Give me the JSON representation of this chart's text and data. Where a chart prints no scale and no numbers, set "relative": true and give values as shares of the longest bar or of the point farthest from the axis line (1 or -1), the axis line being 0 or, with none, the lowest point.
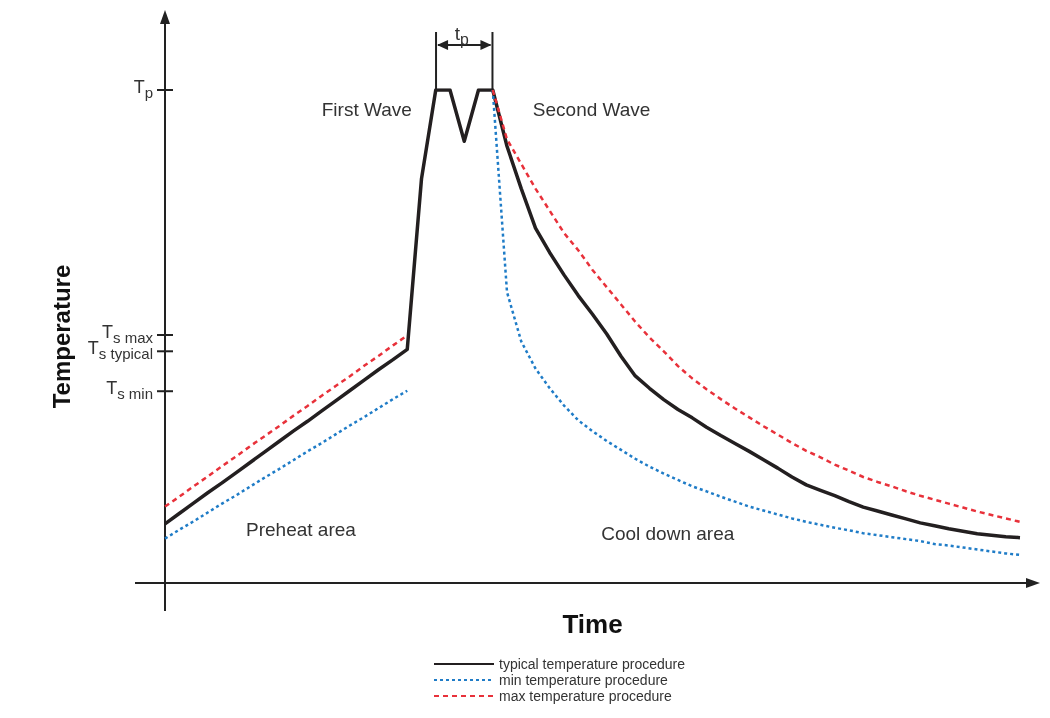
{
  "chart_data": {
    "type": "line",
    "relative": true,
    "xlabel": "Time",
    "ylabel": "Temperature",
    "grid": false,
    "legend": "bottom",
    "marker": "none",
    "categories": [
      null,
      null,
      null,
      null,
      null,
      null,
      null,
      null,
      null,
      null,
      null,
      null,
      null,
      null,
      null,
      null,
      null,
      null,
      null,
      null,
      null,
      null,
      null,
      null,
      null,
      null,
      null,
      null,
      null,
      null,
      null,
      null,
      null,
      null,
      null,
      null,
      null,
      null,
      null,
      null,
      null,
      null,
      null,
      null,
      null,
      null,
      null,
      null,
      null,
      null,
      null,
      null,
      null,
      null,
      null,
      null,
      null,
      null,
      null,
      null,
      null
    ],
    "series": [
      {
        "name": "typical temperature procedure",
        "color": "#231f20",
        "line_style": "solid",
        "values": [
          0.12,
          0.141,
          0.162,
          0.183,
          0.203,
          0.224,
          0.245,
          0.266,
          0.287,
          0.308,
          0.328,
          0.349,
          0.37,
          0.391,
          0.412,
          0.433,
          0.453,
          0.474,
          0.82,
          1,
          1,
          0.896,
          1,
          1,
          0.886,
          0.8,
          0.72,
          0.67,
          0.625,
          0.583,
          0.545,
          0.505,
          0.46,
          0.42,
          0.395,
          0.372,
          0.352,
          0.335,
          0.316,
          0.299,
          0.283,
          0.267,
          0.25,
          0.233,
          0.215,
          0.199,
          0.188,
          0.177,
          0.165,
          0.154,
          0.146,
          0.138,
          0.13,
          0.122,
          0.116,
          0.11,
          0.105,
          0.1,
          0.097,
          0.094,
          0.092
        ]
      },
      {
        "name": "min temperature procedure",
        "color": "#1f7cc7",
        "line_style": "dotted",
        "values": [
          0.09,
          0.108,
          0.125,
          0.143,
          0.161,
          0.178,
          0.196,
          0.214,
          0.231,
          0.249,
          0.267,
          0.284,
          0.302,
          0.32,
          0.337,
          0.355,
          0.373,
          0.39,
          null,
          null,
          null,
          null,
          null,
          1,
          0.59,
          0.49,
          0.435,
          0.395,
          0.36,
          0.33,
          0.308,
          0.288,
          0.27,
          0.252,
          0.236,
          0.222,
          0.209,
          0.196,
          0.186,
          0.175,
          0.165,
          0.155,
          0.147,
          0.139,
          0.131,
          0.124,
          0.118,
          0.112,
          0.107,
          0.101,
          0.097,
          0.093,
          0.089,
          0.085,
          0.079,
          0.076,
          0.072,
          0.068,
          0.064,
          0.06,
          0.057
        ]
      },
      {
        "name": "max temperature procedure",
        "color": "#e8313a",
        "line_style": "dashed",
        "values": [
          0.155,
          0.175,
          0.196,
          0.216,
          0.237,
          0.257,
          0.278,
          0.298,
          0.318,
          0.339,
          0.359,
          0.38,
          0.4,
          0.42,
          0.441,
          0.461,
          0.482,
          0.502,
          null,
          null,
          null,
          null,
          null,
          1,
          0.9,
          0.85,
          0.8,
          0.755,
          0.71,
          0.675,
          0.635,
          0.6,
          0.565,
          0.53,
          0.498,
          0.47,
          0.44,
          0.415,
          0.393,
          0.373,
          0.354,
          0.336,
          0.318,
          0.301,
          0.284,
          0.268,
          0.255,
          0.24,
          0.228,
          0.215,
          0.205,
          0.196,
          0.186,
          0.177,
          0.169,
          0.161,
          0.153,
          0.145,
          0.138,
          0.131,
          0.124
        ]
      }
    ],
    "annotations": [
      "T$_{p}$",
      "T$_{s max}$",
      "T$_{s typical}$",
      "T$_{s min}$",
      "t$_{p}$",
      "First Wave",
      "Second Wave",
      "Preheat area",
      "Cool down area"
    ]
  }
}
